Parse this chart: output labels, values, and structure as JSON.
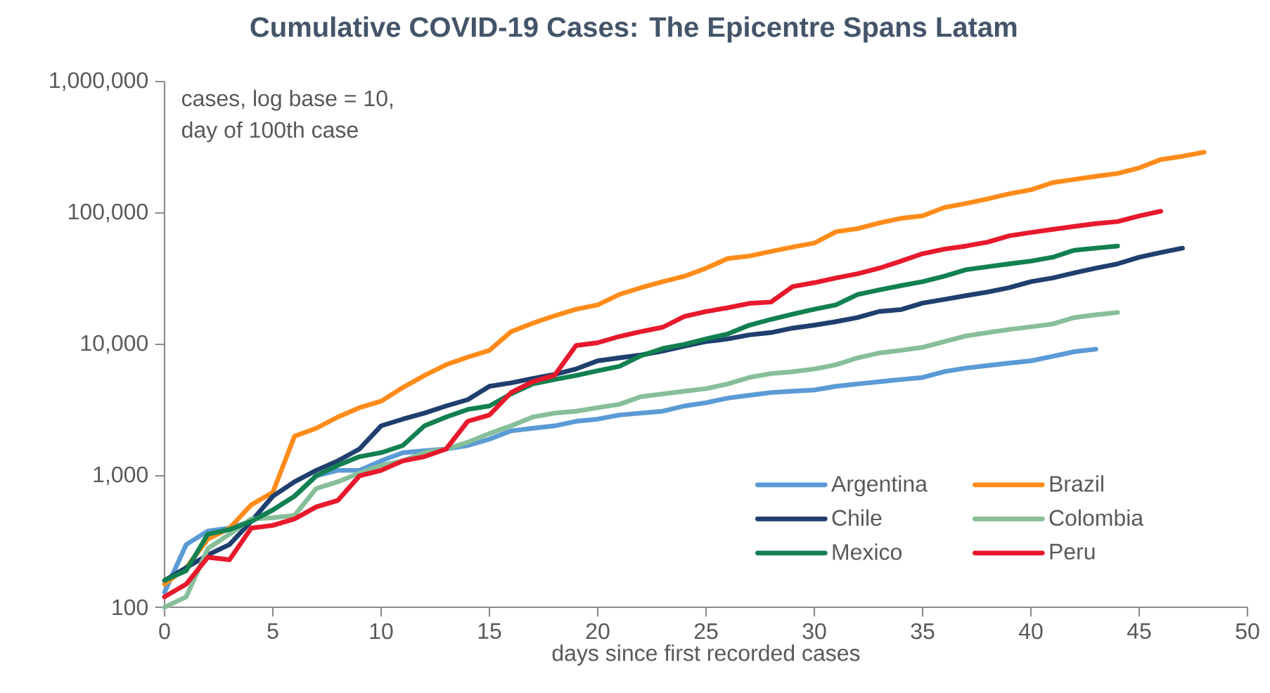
{
  "chart_data": {
    "type": "line",
    "title": "Cumulative COVID-19 Cases: The Epicentre Spans Latam",
    "xlabel": "days since first recorded cases",
    "annotations": [
      "cases, log base = 10,",
      "day of 100th case"
    ],
    "x": [
      0,
      1,
      2,
      3,
      4,
      5,
      6,
      7,
      8,
      9,
      10,
      11,
      12,
      13,
      14,
      15,
      16,
      17,
      18,
      19,
      20,
      21,
      22,
      23,
      24,
      25,
      26,
      27,
      28,
      29,
      30,
      31,
      32,
      33,
      34,
      35,
      36,
      37,
      38,
      39,
      40,
      41,
      42,
      43,
      44,
      45,
      46,
      47,
      48
    ],
    "log": "y",
    "legend": "bottom right",
    "xlim": [
      0,
      50
    ],
    "xticks": [
      0,
      5,
      10,
      15,
      20,
      25,
      30,
      35,
      40,
      45,
      50
    ],
    "ylim": [
      100,
      1000000
    ],
    "yticks": [
      {
        "value": 100,
        "label": "100"
      },
      {
        "value": 1000,
        "label": "1,000"
      },
      {
        "value": 10000,
        "label": "10,000"
      },
      {
        "value": 100000,
        "label": "100,000"
      },
      {
        "value": 1000000,
        "label": "1,000,000"
      }
    ],
    "series": [
      {
        "name": "Argentina",
        "color": "#5b9bd5",
        "values": [
          130,
          300,
          380,
          400,
          450,
          550,
          700,
          1000,
          1100,
          1100,
          1300,
          1500,
          1550,
          1600,
          1700,
          1900,
          2200,
          2300,
          2400,
          2600,
          2700,
          2900,
          3000,
          3100,
          3400,
          3600,
          3900,
          4100,
          4300,
          4400,
          4500,
          4800,
          5000,
          5200,
          5400,
          5600,
          6200,
          6600,
          6900,
          7200,
          7500,
          8100,
          8800,
          9200,
          null,
          null,
          null,
          null,
          null
        ]
      },
      {
        "name": "Brazil",
        "color": "#ff8c1a",
        "values": [
          150,
          200,
          330,
          400,
          600,
          750,
          2000,
          2300,
          2800,
          3300,
          3700,
          4700,
          5800,
          7000,
          8000,
          9000,
          12500,
          14500,
          16500,
          18500,
          20000,
          24000,
          27000,
          30000,
          33000,
          38000,
          45000,
          47000,
          51000,
          55000,
          59000,
          72000,
          76000,
          84000,
          91000,
          95000,
          110000,
          118000,
          128000,
          140000,
          150000,
          170000,
          180000,
          190000,
          200000,
          220000,
          255000,
          270000,
          290000
        ]
      },
      {
        "name": "Chile",
        "color": "#1f3f6e",
        "values": [
          160,
          200,
          250,
          300,
          450,
          700,
          900,
          1100,
          1300,
          1600,
          2400,
          2700,
          3000,
          3400,
          3800,
          4800,
          5100,
          5500,
          5900,
          6500,
          7500,
          7900,
          8300,
          8900,
          9700,
          10500,
          11000,
          11800,
          12300,
          13300,
          14000,
          14900,
          16000,
          17800,
          18400,
          20600,
          22000,
          23500,
          25000,
          27000,
          30000,
          32000,
          35000,
          38000,
          41000,
          46000,
          50000,
          54000,
          null
        ]
      },
      {
        "name": "Colombia",
        "color": "#86bf99",
        "values": [
          100,
          120,
          280,
          360,
          470,
          480,
          500,
          800,
          900,
          1050,
          1200,
          1300,
          1500,
          1600,
          1800,
          2100,
          2400,
          2800,
          3000,
          3100,
          3300,
          3500,
          4000,
          4200,
          4400,
          4600,
          5000,
          5600,
          6000,
          6200,
          6500,
          7000,
          7900,
          8600,
          9000,
          9500,
          10500,
          11600,
          12300,
          13000,
          13600,
          14300,
          16000,
          16800,
          17500,
          null,
          null,
          null,
          null
        ]
      },
      {
        "name": "Mexico",
        "color": "#128051",
        "values": [
          160,
          190,
          360,
          390,
          450,
          550,
          700,
          1000,
          1200,
          1400,
          1500,
          1700,
          2400,
          2800,
          3200,
          3400,
          4200,
          5000,
          5400,
          5800,
          6300,
          6800,
          8200,
          9300,
          10000,
          11000,
          12000,
          14000,
          15500,
          17000,
          18500,
          20000,
          24000,
          26000,
          28000,
          30000,
          33000,
          37000,
          39000,
          41000,
          43000,
          46000,
          52000,
          54000,
          56000,
          null,
          null,
          null,
          null
        ]
      },
      {
        "name": "Peru",
        "color": "#e8192c",
        "values": [
          120,
          150,
          240,
          230,
          400,
          420,
          470,
          580,
          650,
          1000,
          1100,
          1300,
          1400,
          1600,
          2600,
          2900,
          4300,
          5200,
          5800,
          9800,
          10300,
          11500,
          12500,
          13500,
          16300,
          17800,
          19000,
          20500,
          21000,
          27500,
          29500,
          32000,
          34500,
          38000,
          43000,
          49000,
          53000,
          56000,
          60000,
          67000,
          71000,
          75000,
          79000,
          83000,
          86000,
          95000,
          103000,
          null,
          null
        ]
      }
    ]
  }
}
